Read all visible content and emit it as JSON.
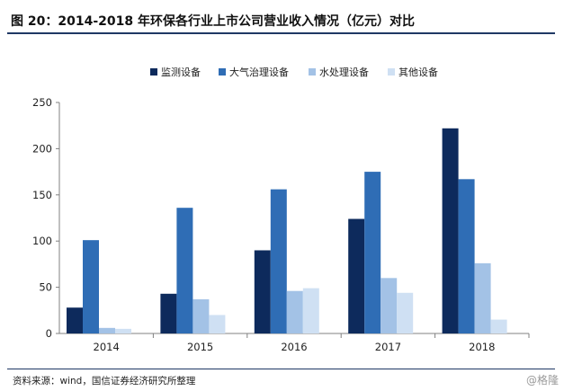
{
  "header": {
    "title": "图 20：2014-2018 年环保各行业上市公司营业收入情况（亿元）对比"
  },
  "footer": {
    "source": "资料来源：wind，国信证券经济研究所整理",
    "watermark": "@格隆"
  },
  "chart_data": {
    "type": "bar",
    "title": "",
    "xlabel": "",
    "ylabel": "",
    "categories": [
      "2014",
      "2015",
      "2016",
      "2017",
      "2018"
    ],
    "series": [
      {
        "name": "监测设备",
        "values": [
          28,
          43,
          90,
          124,
          222
        ],
        "color": "#0d2a5c"
      },
      {
        "name": "大气治理设备",
        "values": [
          101,
          136,
          156,
          175,
          167
        ],
        "color": "#2f6db5"
      },
      {
        "name": "水处理设备",
        "values": [
          6,
          37,
          46,
          60,
          76
        ],
        "color": "#a3c2e6"
      },
      {
        "name": "其他设备",
        "values": [
          5,
          20,
          49,
          44,
          15
        ],
        "color": "#cfe0f3"
      }
    ],
    "ylim": [
      0,
      250
    ],
    "yticks": [
      0,
      50,
      100,
      150,
      200,
      250
    ],
    "grid": false,
    "legend": "top"
  }
}
